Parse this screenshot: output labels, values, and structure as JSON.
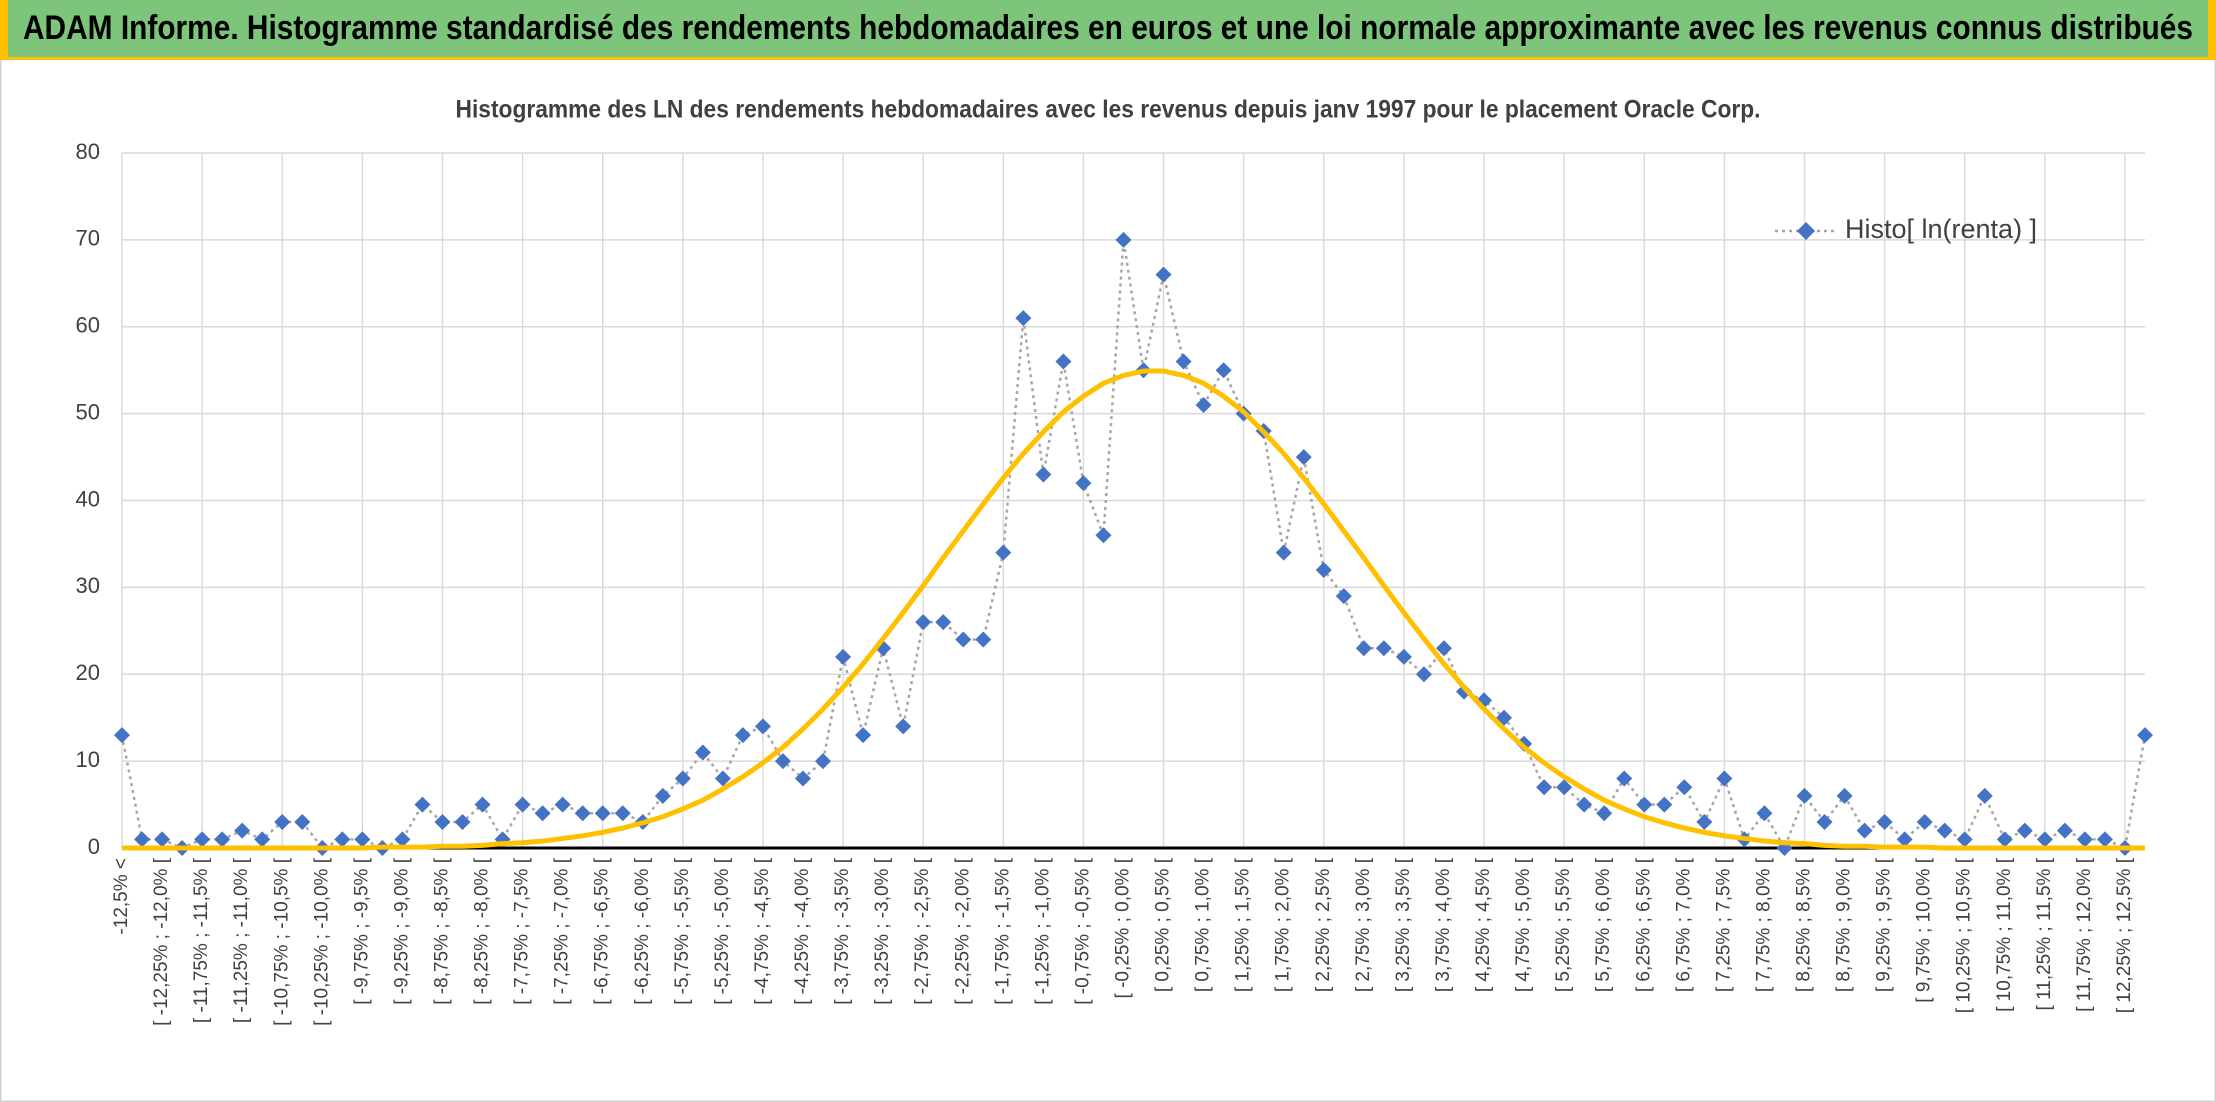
{
  "header": {
    "title": "ADAM Informe. Histogramme standardisé des rendements hebdomadaires en euros et une loi normale approximante avec les revenus connus distribués"
  },
  "chart_data": {
    "type": "line",
    "title": "Histogramme des LN des rendements hebdomadaires avec les revenus depuis janv 1997 pour le placement Oracle Corp.",
    "categories": [
      "-12,5% <",
      null,
      "[ -12,25% ; -12,0% [",
      null,
      "[ -11,75% ; -11,5% [",
      null,
      "[ -11,25% ; -11,0% [",
      null,
      "[ -10,75% ; -10,5% [",
      null,
      "[ -10,25% ; -10,0% [",
      null,
      "[ -9,75% ; -9,5% [",
      null,
      "[ -9,25% ; -9,0% [",
      null,
      "[ -8,75% ; -8,5% [",
      null,
      "[ -8,25% ; -8,0% [",
      null,
      "[ -7,75% ; -7,5% [",
      null,
      "[ -7,25% ; -7,0% [",
      null,
      "[ -6,75% ; -6,5% [",
      null,
      "[ -6,25% ; -6,0% [",
      null,
      "[ -5,75% ; -5,5% [",
      null,
      "[ -5,25% ; -5,0% [",
      null,
      "[ -4,75% ; -4,5% [",
      null,
      "[ -4,25% ; -4,0% [",
      null,
      "[ -3,75% ; -3,5% [",
      null,
      "[ -3,25% ; -3,0% [",
      null,
      "[ -2,75% ; -2,5% [",
      null,
      "[ -2,25% ; -2,0% [",
      null,
      "[ -1,75% ; -1,5% [",
      null,
      "[ -1,25% ; -1,0% [",
      null,
      "[ -0,75% ; -0,5% [",
      null,
      "[ -0,25% ; 0,0% [",
      null,
      "[ 0,25% ; 0,5% [",
      null,
      "[ 0,75% ; 1,0% [",
      null,
      "[ 1,25% ; 1,5% [",
      null,
      "[ 1,75% ; 2,0% [",
      null,
      "[ 2,25% ; 2,5% [",
      null,
      "[ 2,75% ; 3,0% [",
      null,
      "[ 3,25% ; 3,5% [",
      null,
      "[ 3,75% ; 4,0% [",
      null,
      "[ 4,25% ; 4,5% [",
      null,
      "[ 4,75% ; 5,0% [",
      null,
      "[ 5,25% ; 5,5% [",
      null,
      "[ 5,75% ; 6,0% [",
      null,
      "[ 6,25% ; 6,5% [",
      null,
      "[ 6,75% ; 7,0% [",
      null,
      "[ 7,25% ; 7,5% [",
      null,
      "[ 7,75% ; 8,0% [",
      null,
      "[ 8,25% ; 8,5% [",
      null,
      "[ 8,75% ; 9,0% [",
      null,
      "[ 9,25% ; 9,5% [",
      null,
      "[ 9,75% ; 10,0% [",
      null,
      "[ 10,25% ; 10,5% [",
      null,
      "[ 10,75% ; 11,0% [",
      null,
      "[ 11,25% ; 11,5% [",
      null,
      "[ 11,75% ; 12,0% [",
      null,
      "[ 12,25% ; 12,5% [",
      null
    ],
    "series": [
      {
        "name": "Histo[ ln(renta) ]",
        "color": "#4472c4",
        "line_color": "#a6a6a6",
        "values": [
          13,
          1,
          1,
          0,
          1,
          1,
          2,
          1,
          3,
          3,
          0,
          1,
          1,
          0,
          1,
          5,
          3,
          3,
          5,
          1,
          5,
          4,
          5,
          4,
          4,
          4,
          3,
          6,
          8,
          11,
          8,
          13,
          14,
          10,
          8,
          10,
          22,
          13,
          23,
          14,
          26,
          26,
          24,
          24,
          34,
          61,
          43,
          56,
          42,
          36,
          70,
          55,
          66,
          56,
          51,
          55,
          50,
          48,
          34,
          45,
          32,
          29,
          23,
          23,
          22,
          20,
          23,
          18,
          17,
          15,
          12,
          7,
          7,
          5,
          4,
          8,
          5,
          5,
          7,
          3,
          8,
          1,
          4,
          0,
          6,
          3,
          6,
          2,
          3,
          1,
          3,
          2,
          1,
          6,
          1,
          2,
          1,
          2,
          1,
          1,
          0,
          13
        ]
      },
      {
        "color": "#ffc000",
        "values": [
          0,
          0,
          0,
          0,
          0,
          0,
          0,
          0,
          0,
          0,
          0,
          0,
          0,
          0.1,
          0.1,
          0.1,
          0.2,
          0.2,
          0.3,
          0.5,
          0.6,
          0.8,
          1.1,
          1.4,
          1.8,
          2.3,
          2.9,
          3.6,
          4.5,
          5.5,
          6.8,
          8.2,
          9.8,
          11.6,
          13.7,
          16.0,
          18.5,
          21.2,
          24.1,
          27.1,
          30.2,
          33.4,
          36.5,
          39.6,
          42.6,
          45.4,
          47.9,
          50.2,
          52.0,
          53.5,
          54.4,
          54.9,
          54.9,
          54.4,
          53.5,
          52.0,
          50.2,
          47.9,
          45.4,
          42.6,
          39.6,
          36.5,
          33.4,
          30.2,
          27.1,
          24.1,
          21.2,
          18.5,
          16.0,
          13.7,
          11.6,
          9.8,
          8.2,
          6.8,
          5.5,
          4.5,
          3.6,
          2.9,
          2.3,
          1.8,
          1.4,
          1.1,
          0.8,
          0.6,
          0.5,
          0.3,
          0.2,
          0.2,
          0.1,
          0.1,
          0.1,
          0,
          0,
          0,
          0,
          0,
          0,
          0,
          0,
          0,
          0,
          0
        ]
      }
    ],
    "ylim": [
      0,
      80
    ],
    "yticks": [
      0,
      10,
      20,
      30,
      40,
      50,
      60,
      70,
      80
    ],
    "grid": true,
    "legend": "top-right"
  }
}
